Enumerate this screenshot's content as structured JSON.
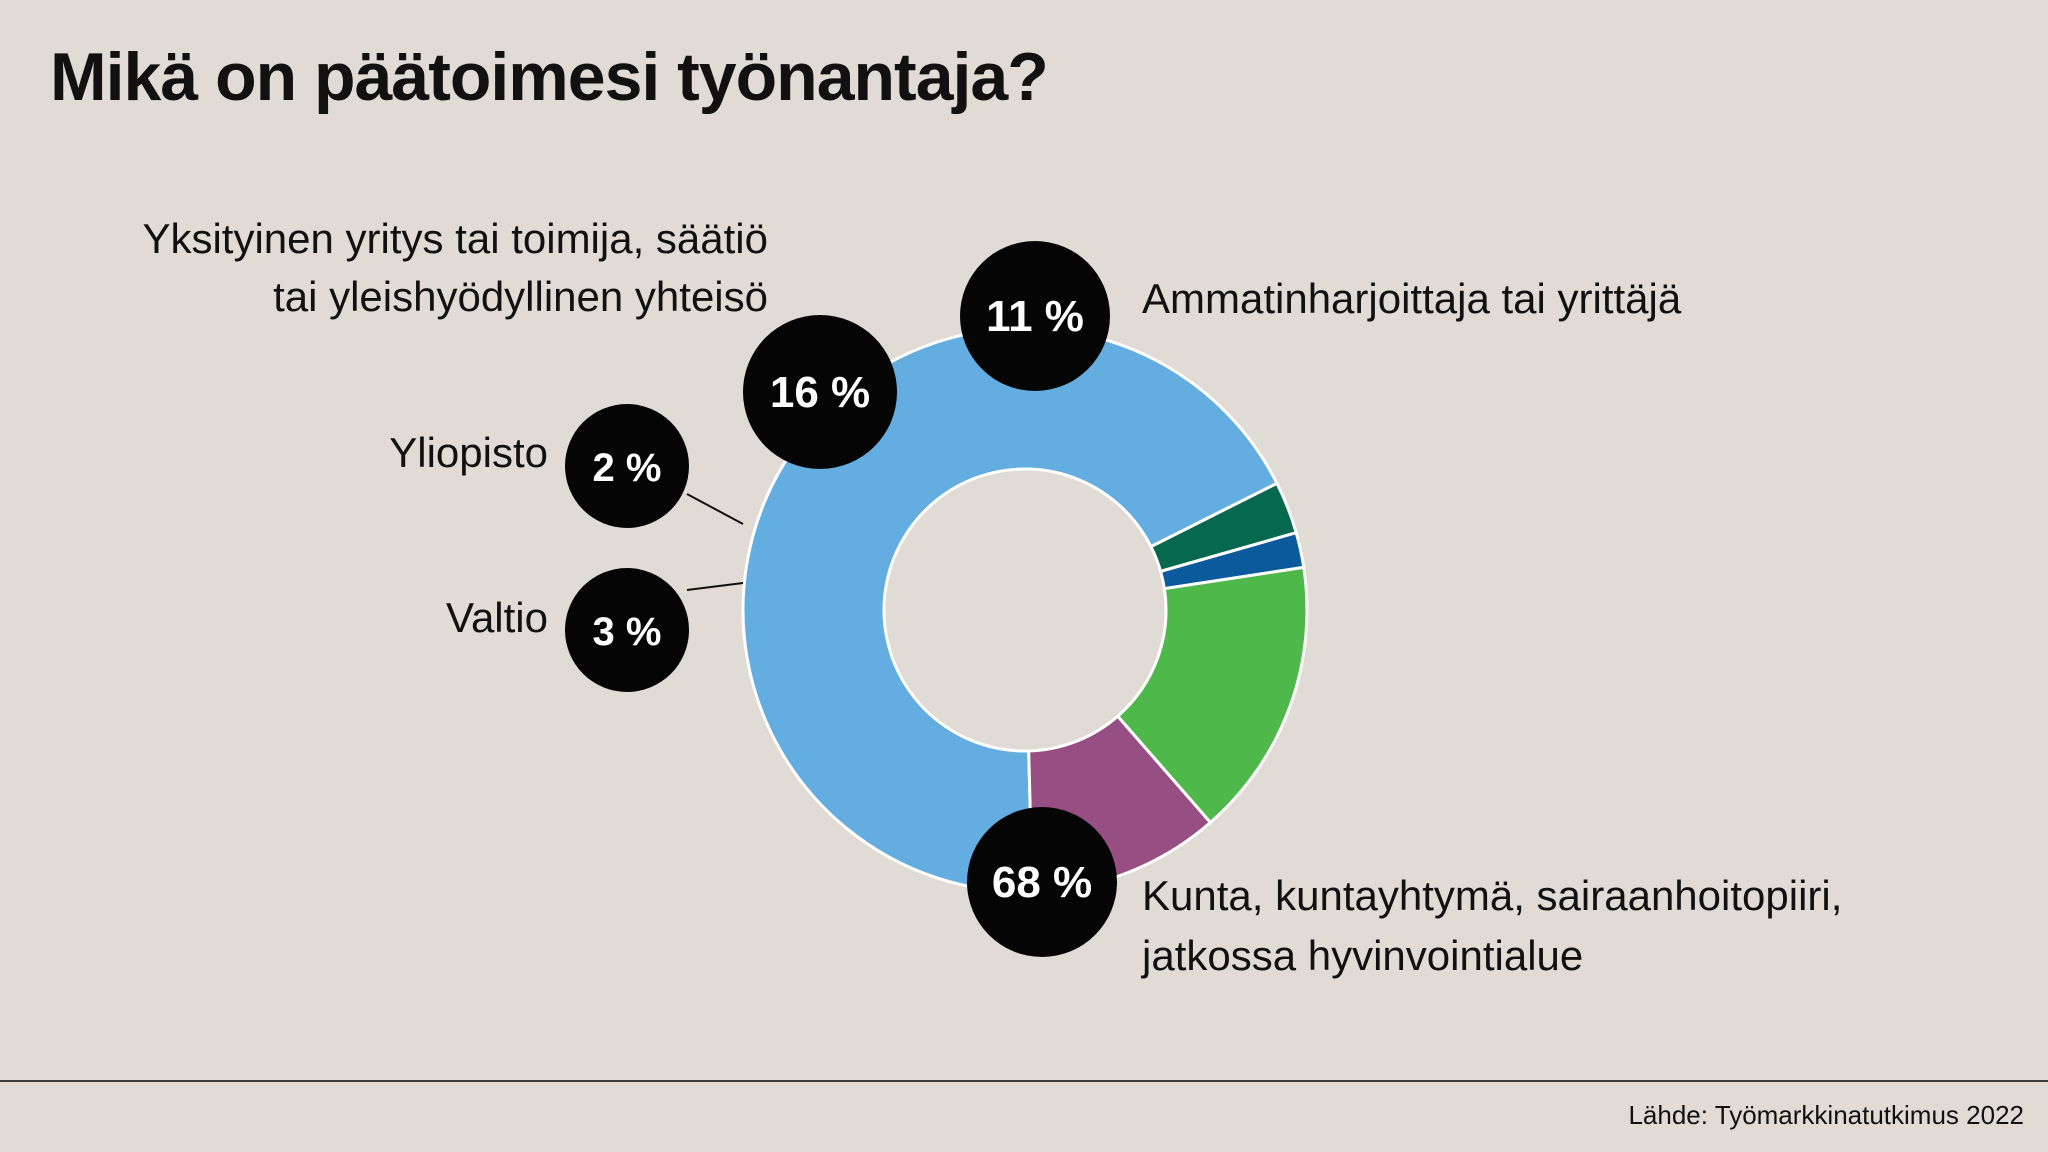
{
  "title": "Mikä on päätoimesi työnantaja?",
  "source": "Lähde: Työmarkkinatutkimus 2022",
  "chart_data": {
    "type": "pie",
    "variant": "donut",
    "title": "Mikä on päätoimesi työnantaja?",
    "unit": "%",
    "slices": [
      {
        "label": "Kunta, kuntayhtymä, sairaanhoitopiiri, jatkossa hyvinvointialue",
        "label_lines": [
          "Kunta, kuntayhtymä, sairaanhoitopiiri,",
          "jatkossa hyvinvointialue"
        ],
        "value": 68,
        "value_label": "68 %",
        "color": "#64ade1"
      },
      {
        "label": "Valtio",
        "label_lines": [
          "Valtio"
        ],
        "value": 3,
        "value_label": "3 %",
        "color": "#06694e"
      },
      {
        "label": "Yliopisto",
        "label_lines": [
          "Yliopisto"
        ],
        "value": 2,
        "value_label": "2 %",
        "color": "#0a5a9c"
      },
      {
        "label": "Yksityinen yritys tai toimija, säätiö tai yleishyödyllinen yhteisö",
        "label_lines": [
          "Yksityinen yritys tai toimija, säätiö",
          "tai yleishyödyllinen yhteisö"
        ],
        "value": 16,
        "value_label": "16 %",
        "color": "#4fb84b"
      },
      {
        "label": "Ammatinharjoittaja tai yrittäjä",
        "label_lines": [
          "Ammatinharjoittaja tai yrittäjä"
        ],
        "value": 11,
        "value_label": "11 %",
        "color": "#964e83"
      }
    ]
  }
}
